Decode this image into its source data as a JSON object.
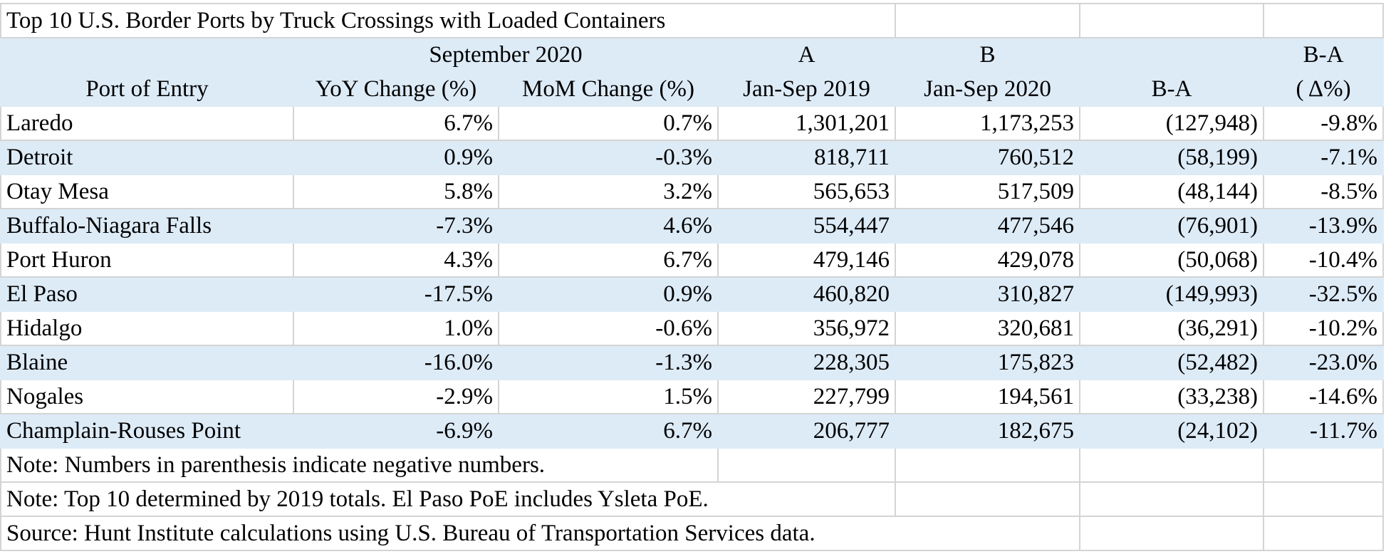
{
  "title": "Top 10 U.S. Border Ports by Truck Crossings with Loaded Containers",
  "header_top": {
    "september_group": "September 2020",
    "col_a": "A",
    "col_b": "B",
    "col_delta_pct_top": "B-A"
  },
  "header_bottom": {
    "port": "Port of Entry",
    "yoy": "YoY Change (%)",
    "mom": "MoM Change (%)",
    "jan_sep_2019": "Jan-Sep 2019",
    "jan_sep_2020": "Jan-Sep 2020",
    "diff": "B-A",
    "diff_pct": "( Δ%)"
  },
  "rows": [
    {
      "port": "Laredo",
      "yoy": "6.7%",
      "mom": "0.7%",
      "a": "1,301,201",
      "b": "1,173,253",
      "diff": "(127,948)",
      "pct": "-9.8%"
    },
    {
      "port": "Detroit",
      "yoy": "0.9%",
      "mom": "-0.3%",
      "a": "818,711",
      "b": "760,512",
      "diff": "(58,199)",
      "pct": "-7.1%"
    },
    {
      "port": "Otay Mesa",
      "yoy": "5.8%",
      "mom": "3.2%",
      "a": "565,653",
      "b": "517,509",
      "diff": "(48,144)",
      "pct": "-8.5%"
    },
    {
      "port": "Buffalo-Niagara Falls",
      "yoy": "-7.3%",
      "mom": "4.6%",
      "a": "554,447",
      "b": "477,546",
      "diff": "(76,901)",
      "pct": "-13.9%"
    },
    {
      "port": "Port Huron",
      "yoy": "4.3%",
      "mom": "6.7%",
      "a": "479,146",
      "b": "429,078",
      "diff": "(50,068)",
      "pct": "-10.4%"
    },
    {
      "port": "El Paso",
      "yoy": "-17.5%",
      "mom": "0.9%",
      "a": "460,820",
      "b": "310,827",
      "diff": "(149,993)",
      "pct": "-32.5%"
    },
    {
      "port": "Hidalgo",
      "yoy": "1.0%",
      "mom": "-0.6%",
      "a": "356,972",
      "b": "320,681",
      "diff": "(36,291)",
      "pct": "-10.2%"
    },
    {
      "port": "Blaine",
      "yoy": "-16.0%",
      "mom": "-1.3%",
      "a": "228,305",
      "b": "175,823",
      "diff": "(52,482)",
      "pct": "-23.0%"
    },
    {
      "port": "Nogales",
      "yoy": "-2.9%",
      "mom": "1.5%",
      "a": "227,799",
      "b": "194,561",
      "diff": "(33,238)",
      "pct": "-14.6%"
    },
    {
      "port": "Champlain-Rouses Point",
      "yoy": "-6.9%",
      "mom": "6.7%",
      "a": "206,777",
      "b": "182,675",
      "diff": "(24,102)",
      "pct": "-11.7%"
    }
  ],
  "notes": [
    "Note: Numbers in parenthesis indicate negative numbers.",
    "Note: Top 10 determined by 2019 totals. El Paso PoE includes Ysleta PoE.",
    "Source: Hunt Institute calculations using U.S. Bureau of Transportation Services data."
  ],
  "colors": {
    "band_fill": "#ddebf7",
    "gridline": "#d4d4d4"
  }
}
